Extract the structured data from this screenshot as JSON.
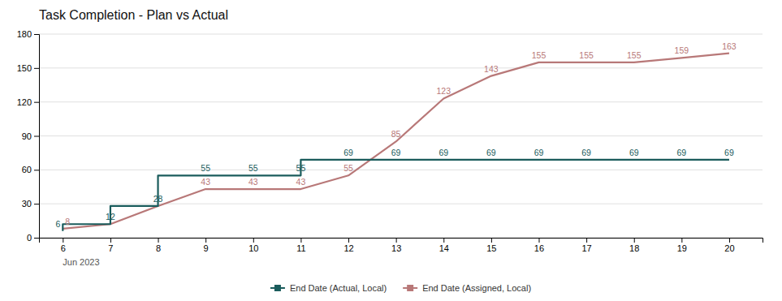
{
  "chart_data": {
    "type": "line",
    "title": "Task Completion - Plan vs Actual",
    "x": [
      6,
      7,
      8,
      9,
      10,
      11,
      12,
      13,
      14,
      15,
      16,
      17,
      18,
      19,
      20
    ],
    "series": [
      {
        "name": "End Date (Actual, Local)",
        "color": "#1a5c5c",
        "line_style": "step",
        "values": [
          6,
          12,
          28,
          55,
          55,
          55,
          69,
          69,
          69,
          69,
          69,
          69,
          69,
          69,
          69
        ]
      },
      {
        "name": "End Date (Assigned, Local)",
        "color": "#b87878",
        "values": [
          8,
          12,
          28,
          43,
          43,
          43,
          55,
          85,
          123,
          143,
          155,
          155,
          155,
          159,
          163
        ]
      }
    ],
    "xlim": [
      5.5,
      20.7
    ],
    "xticks": [
      6,
      7,
      8,
      9,
      10,
      11,
      12,
      13,
      14,
      15,
      16,
      17,
      18,
      19,
      20
    ],
    "ylim": [
      0,
      180
    ],
    "yticks": [
      0,
      30,
      60,
      90,
      120,
      150,
      180
    ],
    "grid": true,
    "legend": "bottom",
    "data_labels": true,
    "annotations": [
      {
        "text": "Jun 2023",
        "x": 6
      }
    ]
  }
}
